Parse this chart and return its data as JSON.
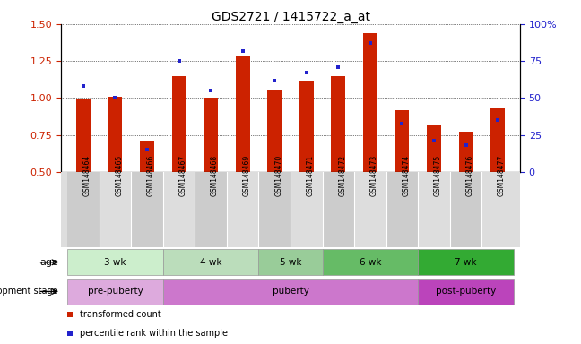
{
  "title": "GDS2721 / 1415722_a_at",
  "samples": [
    "GSM148464",
    "GSM148465",
    "GSM148466",
    "GSM148467",
    "GSM148468",
    "GSM148469",
    "GSM148470",
    "GSM148471",
    "GSM148472",
    "GSM148473",
    "GSM148474",
    "GSM148475",
    "GSM148476",
    "GSM148477"
  ],
  "red_values": [
    0.99,
    1.01,
    0.71,
    1.15,
    1.0,
    1.28,
    1.06,
    1.12,
    1.15,
    1.44,
    0.92,
    0.82,
    0.77,
    0.93
  ],
  "blue_values": [
    58,
    50,
    15,
    75,
    55,
    82,
    62,
    67,
    71,
    87,
    33,
    21,
    18,
    35
  ],
  "ylim_left": [
    0.5,
    1.5
  ],
  "ylim_right": [
    0,
    100
  ],
  "yticks_left": [
    0.5,
    0.75,
    1.0,
    1.25,
    1.5
  ],
  "yticks_right": [
    0,
    25,
    50,
    75,
    100
  ],
  "ytick_labels_right": [
    "0",
    "25",
    "50",
    "75",
    "100%"
  ],
  "bar_color": "#CC2200",
  "dot_color": "#2222CC",
  "age_groups": [
    {
      "label": "3 wk",
      "start": 0,
      "end": 2,
      "color": "#CCEECC"
    },
    {
      "label": "4 wk",
      "start": 3,
      "end": 5,
      "color": "#BBDDBB"
    },
    {
      "label": "5 wk",
      "start": 6,
      "end": 7,
      "color": "#99CC99"
    },
    {
      "label": "6 wk",
      "start": 8,
      "end": 10,
      "color": "#66BB66"
    },
    {
      "label": "7 wk",
      "start": 11,
      "end": 13,
      "color": "#33AA33"
    }
  ],
  "dev_groups": [
    {
      "label": "pre-puberty",
      "start": 0,
      "end": 2,
      "color": "#DDAADD"
    },
    {
      "label": "puberty",
      "start": 3,
      "end": 10,
      "color": "#CC77CC"
    },
    {
      "label": "post-puberty",
      "start": 11,
      "end": 13,
      "color": "#BB44BB"
    }
  ],
  "left_axis_color": "#CC2200",
  "right_axis_color": "#2222CC"
}
